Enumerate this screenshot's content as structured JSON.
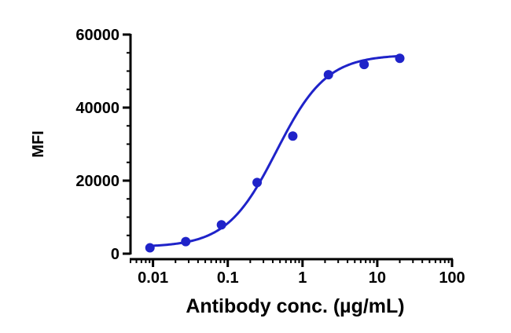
{
  "chart_data": {
    "type": "scatter",
    "title": "",
    "xlabel": "Antibody conc. (µg/mL)",
    "ylabel": "MFI",
    "x_scale": "log",
    "xlim": [
      0.005,
      100
    ],
    "ylim": [
      0,
      60000
    ],
    "x_ticks": [
      0.01,
      0.1,
      1,
      10,
      100
    ],
    "x_tick_labels": [
      "0.01",
      "0.1",
      "1",
      "10",
      "100"
    ],
    "y_ticks": [
      0,
      20000,
      40000,
      60000
    ],
    "y_tick_labels": [
      "0",
      "20000",
      "40000",
      "60000"
    ],
    "grid": false,
    "legend": "none",
    "series": [
      {
        "color": "#1f23c9",
        "points": [
          {
            "x": 0.0091,
            "y": 1600
          },
          {
            "x": 0.0274,
            "y": 3300
          },
          {
            "x": 0.0823,
            "y": 7900
          },
          {
            "x": 0.247,
            "y": 19500
          },
          {
            "x": 0.741,
            "y": 32200
          },
          {
            "x": 2.22,
            "y": 49000
          },
          {
            "x": 6.67,
            "y": 51800
          },
          {
            "x": 20.0,
            "y": 53500
          }
        ],
        "fit": {
          "model": "4PL",
          "bottom": 1800,
          "top": 54500,
          "ec50": 0.45,
          "hill": 1.3,
          "x_range": [
            0.0091,
            20.0
          ]
        }
      }
    ]
  }
}
